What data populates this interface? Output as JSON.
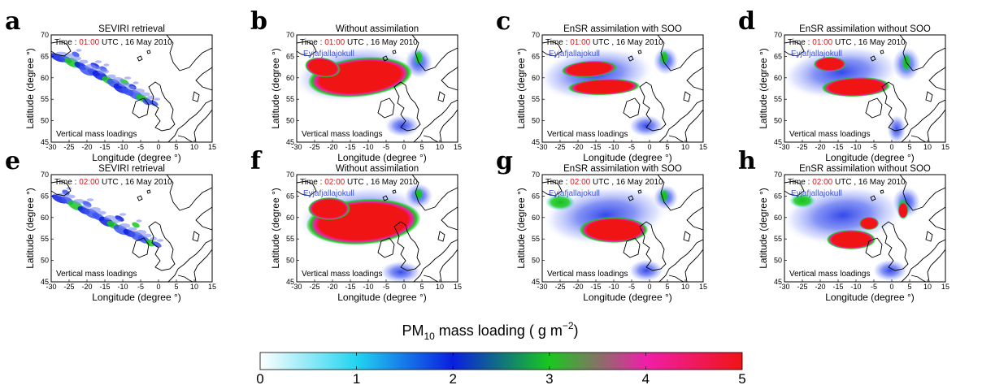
{
  "figure": {
    "xlabel": "Longitude (degree °)",
    "ylabel": "Latitude (degree °)",
    "x_ticks": [
      "-30",
      "-25",
      "-20",
      "-15",
      "-10",
      "-5",
      "0",
      "5",
      "10",
      "15"
    ],
    "y_ticks": [
      "45",
      "50",
      "55",
      "60",
      "65",
      "70"
    ],
    "volcano_label": "Eyjafjallajokull",
    "info_label": "Vertical mass loadings",
    "time_prefix": "Time : ",
    "time_suffix": " UTC , 16 May 2010"
  },
  "panels": [
    {
      "letter": "a",
      "title": "SEVIRI retrieval",
      "time": "01:00",
      "kind": "obs",
      "show_volcano": false
    },
    {
      "letter": "b",
      "title": "Without assimilation",
      "time": "01:00",
      "kind": "b",
      "show_volcano": true
    },
    {
      "letter": "c",
      "title": "EnSR assimilation with SOO",
      "time": "01:00",
      "kind": "c",
      "show_volcano": true
    },
    {
      "letter": "d",
      "title": "EnSR assimilation without SOO",
      "time": "01:00",
      "kind": "d",
      "show_volcano": true
    },
    {
      "letter": "e",
      "title": "SEVIRI retrieval",
      "time": "02:00",
      "kind": "obs",
      "show_volcano": false
    },
    {
      "letter": "f",
      "title": "Without assimilation",
      "time": "02:00",
      "kind": "f",
      "show_volcano": true
    },
    {
      "letter": "g",
      "title": "EnSR assimilation with SOO",
      "time": "02:00",
      "kind": "g",
      "show_volcano": true
    },
    {
      "letter": "h",
      "title": "EnSR assimilation without SOO",
      "time": "02:00",
      "kind": "h",
      "show_volcano": true
    }
  ],
  "colorbar": {
    "title_main": "PM",
    "title_sub": "10",
    "title_rest": " mass loading ( g m",
    "title_sup": "−2",
    "title_end": ")",
    "ticks": [
      "0",
      "1",
      "2",
      "3",
      "4",
      "5"
    ],
    "min": 0,
    "max": 5,
    "colors": [
      "#ffffff",
      "#22d4f0",
      "#0a1ee0",
      "#19c81e",
      "#f01eaa",
      "#f01414"
    ]
  },
  "colors": {
    "time_highlight": "#e8141b",
    "land_outline": "#000000"
  }
}
